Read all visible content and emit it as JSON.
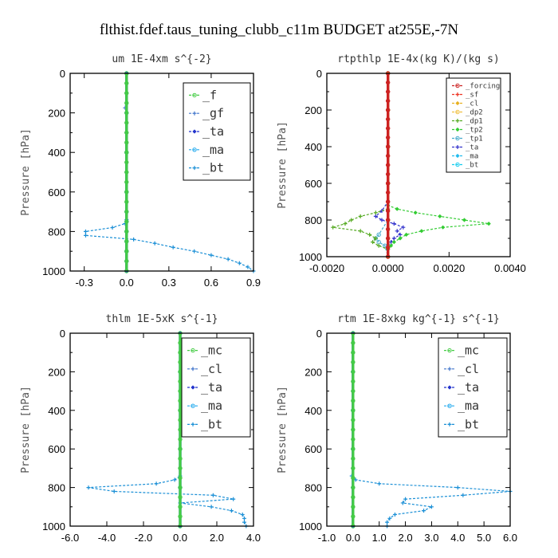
{
  "figure_title": "flthist.fdef.taus_tuning_clubb_c11m  BUDGET at255E,-7N",
  "chart_data": [
    {
      "type": "line",
      "title": "um   1E-4xm  s^{-2}",
      "ylabel": "Pressure [hPa]",
      "xlim": [
        -0.4,
        0.9
      ],
      "ylim": [
        1000,
        0
      ],
      "xticks": [
        -0.3,
        0.0,
        0.3,
        0.6,
        0.9
      ],
      "xtick_labels": [
        "-0.3",
        "0.0",
        "0.3",
        "0.6",
        "0.9"
      ],
      "yticks": [
        0,
        200,
        400,
        600,
        800,
        1000
      ],
      "ytick_labels": [
        "0",
        "200",
        "400",
        "600",
        "800",
        "1000"
      ],
      "legend_position": "top-right",
      "legend_font": 15,
      "series": [
        {
          "name": "_f",
          "color": "#44cc44",
          "pressure": [
            0,
            50,
            100,
            150,
            200,
            250,
            300,
            350,
            400,
            450,
            500,
            550,
            600,
            650,
            700,
            750,
            800,
            850,
            900,
            950,
            1000
          ],
          "values": [
            0,
            0,
            0,
            0,
            0,
            0,
            0,
            0,
            0,
            0,
            0,
            0,
            0,
            0,
            0,
            0,
            0,
            0,
            0,
            0,
            0
          ]
        },
        {
          "name": "_gf",
          "color": "#4477cc",
          "pressure": [
            0,
            100,
            175,
            200,
            300,
            400,
            500,
            600,
            700,
            750,
            800,
            850,
            900,
            950,
            1000
          ],
          "values": [
            0,
            0,
            -0.01,
            0,
            0,
            0,
            0,
            0,
            0,
            0,
            0,
            0,
            0,
            0,
            0
          ]
        },
        {
          "name": "_ta",
          "color": "#2233cc",
          "pressure": [
            0,
            200,
            400,
            600,
            700,
            750,
            800,
            850,
            900,
            950,
            1000
          ],
          "values": [
            0,
            0,
            0,
            0,
            0,
            0,
            0,
            0,
            0,
            0,
            0
          ]
        },
        {
          "name": "_ma",
          "color": "#22aaee",
          "pressure": [
            0,
            200,
            400,
            600,
            700,
            750,
            800,
            850,
            900,
            950,
            1000
          ],
          "values": [
            0,
            0,
            0,
            0,
            0,
            0,
            0,
            0,
            0,
            0,
            0
          ]
        },
        {
          "name": "_bt",
          "color": "#1a8fd6",
          "pressure": [
            0,
            100,
            200,
            300,
            400,
            500,
            600,
            700,
            740,
            760,
            780,
            800,
            820,
            840,
            860,
            880,
            900,
            920,
            940,
            960,
            980,
            1000
          ],
          "values": [
            0,
            0,
            0,
            0,
            0,
            0,
            0,
            0,
            0,
            -0.01,
            -0.1,
            -0.29,
            -0.29,
            0.05,
            0.2,
            0.33,
            0.48,
            0.6,
            0.72,
            0.8,
            0.86,
            0.9
          ]
        }
      ]
    },
    {
      "type": "line",
      "title": "rtpthlp   1E-4x(kg K)/(kg s)",
      "ylabel": "Pressure [hPa]",
      "xlim": [
        -0.002,
        0.004
      ],
      "ylim": [
        1000,
        0
      ],
      "xticks": [
        -0.002,
        0.0,
        0.002,
        0.004
      ],
      "xtick_labels": [
        "-0.0020",
        "0.0000",
        "0.0020",
        "0.0040"
      ],
      "yticks": [
        0,
        200,
        400,
        600,
        800,
        1000
      ],
      "ytick_labels": [
        "0",
        "200",
        "400",
        "600",
        "800",
        "1000"
      ],
      "legend_position": "top-right",
      "legend_font": 9,
      "series": [
        {
          "name": "_forcing",
          "color": "#cc2222",
          "pressure": [
            0,
            50,
            100,
            150,
            200,
            250,
            300,
            350,
            400,
            450,
            500,
            550,
            600,
            650,
            700,
            750,
            800,
            850,
            900,
            950,
            1000
          ],
          "values": [
            0,
            0,
            0,
            0,
            0,
            0,
            0,
            0,
            0,
            0,
            0,
            0,
            0,
            0,
            0,
            0,
            0,
            0,
            0,
            0,
            0
          ]
        },
        {
          "name": "_sf",
          "color": "#ee3322",
          "pressure": [
            0,
            100,
            200,
            300,
            400,
            500,
            600,
            700,
            800,
            900,
            1000
          ],
          "values": [
            0,
            0,
            0,
            0,
            0,
            0,
            0,
            0,
            0,
            0,
            0
          ]
        },
        {
          "name": "_cl",
          "color": "#e8b020",
          "pressure": [
            0,
            200,
            400,
            600,
            800,
            1000
          ],
          "values": [
            0,
            0,
            0,
            0,
            0,
            0
          ]
        },
        {
          "name": "_dp2",
          "color": "#f0c040",
          "pressure": [
            0,
            200,
            400,
            600,
            800,
            1000
          ],
          "values": [
            0,
            0,
            0,
            0,
            0,
            0
          ]
        },
        {
          "name": "_dp1",
          "color": "#55aa22",
          "pressure": [
            0,
            200,
            400,
            600,
            740,
            760,
            780,
            800,
            820,
            840,
            860,
            880,
            900,
            920,
            940,
            960,
            1000
          ],
          "values": [
            0,
            0,
            0,
            0,
            0,
            -0.0004,
            -0.0009,
            -0.0012,
            -0.0014,
            -0.0018,
            -0.0009,
            -0.0006,
            -0.0004,
            -0.0005,
            -0.0003,
            0,
            0
          ]
        },
        {
          "name": "_tp2",
          "color": "#33cc33",
          "pressure": [
            0,
            200,
            400,
            600,
            720,
            740,
            760,
            780,
            800,
            820,
            840,
            860,
            880,
            900,
            920,
            940,
            960,
            1000
          ],
          "values": [
            0,
            0,
            0,
            0,
            0,
            0.0003,
            0.0009,
            0.0017,
            0.0025,
            0.0033,
            0.0018,
            0.0011,
            0.0006,
            0.0004,
            0.0002,
            0.0001,
            0,
            0
          ]
        },
        {
          "name": "_tp1",
          "color": "#44aacc",
          "pressure": [
            0,
            200,
            400,
            600,
            800,
            880,
            900,
            920,
            940,
            1000
          ],
          "values": [
            0,
            0,
            0,
            0,
            0,
            -0.0003,
            -0.0004,
            -0.0003,
            -0.0001,
            0
          ]
        },
        {
          "name": "_ta",
          "color": "#3333cc",
          "pressure": [
            0,
            200,
            400,
            600,
            700,
            750,
            780,
            800,
            820,
            840,
            860,
            880,
            900,
            920,
            940,
            960,
            1000
          ],
          "values": [
            0,
            0,
            0,
            0,
            0,
            -0.0002,
            -0.0004,
            -0.0002,
            0.0002,
            0.0005,
            0.0003,
            0.0004,
            0.0002,
            0.0001,
            0,
            0,
            0
          ]
        },
        {
          "name": "_ma",
          "color": "#22bbee",
          "pressure": [
            0,
            200,
            400,
            600,
            800,
            1000
          ],
          "values": [
            0,
            0,
            0,
            0,
            0,
            0
          ]
        },
        {
          "name": "_bt",
          "color": "#11ccee",
          "pressure": [
            0,
            200,
            400,
            600,
            800,
            1000
          ],
          "values": [
            0,
            0,
            0,
            0,
            0,
            0
          ]
        }
      ]
    },
    {
      "type": "line",
      "title": "thlm   1E-5xK  s^{-1}",
      "ylabel": "Pressure [hPa]",
      "xlim": [
        -6.0,
        4.0
      ],
      "ylim": [
        1000,
        0
      ],
      "xticks": [
        -6,
        -4,
        -2,
        0,
        2,
        4
      ],
      "xtick_labels": [
        "-6.0",
        "-4.0",
        "-2.0",
        "0.0",
        "2.0",
        "4.0"
      ],
      "yticks": [
        0,
        200,
        400,
        600,
        800,
        1000
      ],
      "ytick_labels": [
        "0",
        "200",
        "400",
        "600",
        "800",
        "1000"
      ],
      "legend_position": "top-right",
      "legend_font": 15,
      "series": [
        {
          "name": "_mc",
          "color": "#44cc44",
          "pressure": [
            0,
            50,
            100,
            150,
            200,
            250,
            300,
            350,
            400,
            450,
            500,
            550,
            600,
            650,
            700,
            750,
            800,
            850,
            900,
            950,
            1000
          ],
          "values": [
            0,
            0,
            0,
            0,
            0,
            0,
            0,
            0,
            0,
            0,
            0,
            0,
            0,
            0,
            0,
            0,
            0,
            0,
            0,
            0,
            0
          ]
        },
        {
          "name": "_cl",
          "color": "#4477cc",
          "pressure": [
            0,
            200,
            400,
            600,
            800,
            1000
          ],
          "values": [
            0,
            0,
            0,
            0,
            0,
            0
          ]
        },
        {
          "name": "_ta",
          "color": "#2233cc",
          "pressure": [
            0,
            200,
            400,
            600,
            800,
            1000
          ],
          "values": [
            0,
            0,
            0,
            0,
            0,
            0
          ]
        },
        {
          "name": "_ma",
          "color": "#22aaee",
          "pressure": [
            0,
            200,
            400,
            600,
            800,
            1000
          ],
          "values": [
            0,
            0,
            0,
            0,
            0,
            0
          ]
        },
        {
          "name": "_bt",
          "color": "#1a8fd6",
          "pressure": [
            0,
            100,
            200,
            300,
            400,
            500,
            600,
            700,
            740,
            760,
            780,
            800,
            820,
            840,
            860,
            880,
            900,
            920,
            940,
            960,
            980,
            1000
          ],
          "values": [
            0,
            0,
            0,
            0,
            0,
            0,
            0,
            0,
            0,
            -0.3,
            -1.3,
            -5.0,
            -3.6,
            1.8,
            2.9,
            0.0,
            1.7,
            2.8,
            3.4,
            3.5,
            3.5,
            3.6
          ]
        }
      ]
    },
    {
      "type": "line",
      "title": "rtm   1E-8xkg  kg^{-1}  s^{-1}",
      "ylabel": "Pressure [hPa]",
      "xlim": [
        -1.0,
        6.0
      ],
      "ylim": [
        1000,
        0
      ],
      "xticks": [
        -1,
        0,
        1,
        2,
        3,
        4,
        5,
        6
      ],
      "xtick_labels": [
        "-1.0",
        "0.0",
        "1.0",
        "2.0",
        "3.0",
        "4.0",
        "5.0",
        "6.0"
      ],
      "yticks": [
        0,
        200,
        400,
        600,
        800,
        1000
      ],
      "ytick_labels": [
        "0",
        "200",
        "400",
        "600",
        "800",
        "1000"
      ],
      "legend_position": "top-right",
      "legend_font": 15,
      "series": [
        {
          "name": "_mc",
          "color": "#44cc44",
          "pressure": [
            0,
            50,
            100,
            150,
            200,
            250,
            300,
            350,
            400,
            450,
            500,
            550,
            600,
            650,
            700,
            750,
            800,
            850,
            900,
            950,
            1000
          ],
          "values": [
            0,
            0,
            0,
            0,
            0,
            0,
            0,
            0,
            0,
            0,
            0,
            0,
            0,
            0,
            0,
            0,
            0,
            0,
            0,
            0,
            0
          ]
        },
        {
          "name": "_cl",
          "color": "#4477cc",
          "pressure": [
            0,
            200,
            400,
            600,
            800,
            1000
          ],
          "values": [
            0,
            0,
            0,
            0,
            0,
            0
          ]
        },
        {
          "name": "_ta",
          "color": "#2233cc",
          "pressure": [
            0,
            200,
            400,
            600,
            800,
            1000
          ],
          "values": [
            0,
            0,
            0,
            0,
            0,
            0
          ]
        },
        {
          "name": "_ma",
          "color": "#22aaee",
          "pressure": [
            0,
            200,
            400,
            600,
            800,
            1000
          ],
          "values": [
            0,
            0,
            0,
            0,
            0,
            0
          ]
        },
        {
          "name": "_bt",
          "color": "#1a8fd6",
          "pressure": [
            0,
            100,
            200,
            300,
            400,
            500,
            600,
            700,
            740,
            760,
            780,
            800,
            820,
            840,
            860,
            880,
            900,
            920,
            940,
            960,
            980,
            1000
          ],
          "values": [
            0,
            0,
            0,
            0,
            0,
            0,
            0,
            0,
            -0.05,
            0.1,
            1.0,
            4.0,
            6.0,
            4.2,
            2.0,
            1.9,
            3.0,
            2.7,
            1.6,
            1.4,
            1.3,
            1.3
          ]
        }
      ]
    }
  ]
}
